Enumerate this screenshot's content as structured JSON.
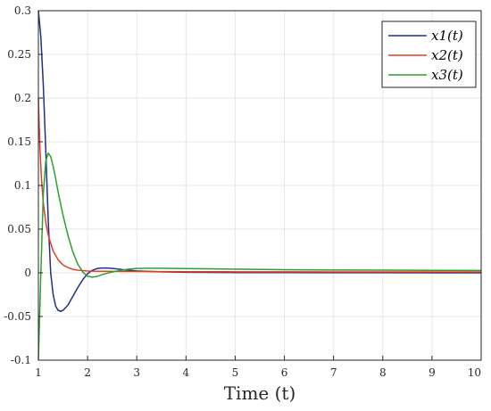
{
  "chart_data": {
    "type": "line",
    "xlabel": "Time (t)",
    "ylabel": "",
    "xlim": [
      1,
      10
    ],
    "ylim": [
      -0.1,
      0.3
    ],
    "grid": true,
    "legend_position": "top-right",
    "x_ticks": [
      "1",
      "2",
      "3",
      "4",
      "5",
      "6",
      "7",
      "8",
      "9",
      "10"
    ],
    "y_ticks": [
      "-0.1",
      "-0.05",
      "0",
      "0.05",
      "0.1",
      "0.15",
      "0.2",
      "0.25",
      "0.3"
    ],
    "series": [
      {
        "name": "x1(t)",
        "color": "#1f2f8c",
        "x": [
          1.0,
          1.05,
          1.1,
          1.15,
          1.2,
          1.25,
          1.3,
          1.35,
          1.4,
          1.45,
          1.5,
          1.6,
          1.7,
          1.8,
          1.9,
          2.0,
          2.1,
          2.2,
          2.3,
          2.4,
          2.6,
          2.8,
          3.0,
          3.5,
          4.0,
          5.0,
          6.0,
          7.0,
          8.0,
          9.0,
          10.0
        ],
        "y": [
          0.3,
          0.27,
          0.215,
          0.14,
          0.06,
          0.0,
          -0.025,
          -0.038,
          -0.043,
          -0.044,
          -0.043,
          -0.037,
          -0.027,
          -0.017,
          -0.008,
          -0.001,
          0.003,
          0.005,
          0.0055,
          0.0055,
          0.0045,
          0.003,
          0.0022,
          0.0012,
          0.0006,
          0.0003,
          0.0002,
          0.0001,
          0.0001,
          0.0,
          0.0
        ]
      },
      {
        "name": "x2(t)",
        "color": "#e0401f",
        "x": [
          1.0,
          1.03,
          1.06,
          1.1,
          1.15,
          1.2,
          1.3,
          1.4,
          1.5,
          1.6,
          1.7,
          1.8,
          2.0,
          2.2,
          2.5,
          3.0,
          3.5,
          4.0,
          5.0,
          6.0,
          7.0,
          8.0,
          9.0,
          10.0
        ],
        "y": [
          0.2,
          0.145,
          0.11,
          0.08,
          0.058,
          0.043,
          0.025,
          0.015,
          0.009,
          0.006,
          0.004,
          0.003,
          0.002,
          0.0018,
          0.0016,
          0.0015,
          0.0014,
          0.0013,
          0.0012,
          0.0011,
          0.001,
          0.001,
          0.001,
          0.001
        ]
      },
      {
        "name": "x3(t)",
        "color": "#2ca02c",
        "x": [
          1.0,
          1.05,
          1.1,
          1.15,
          1.2,
          1.25,
          1.3,
          1.35,
          1.4,
          1.5,
          1.6,
          1.7,
          1.8,
          1.9,
          2.0,
          2.1,
          2.2,
          2.3,
          2.5,
          2.8,
          3.0,
          3.2,
          3.5,
          4.0,
          5.0,
          6.0,
          7.0,
          8.0,
          9.0,
          10.0
        ],
        "y": [
          -0.1,
          0.0,
          0.09,
          0.128,
          0.137,
          0.133,
          0.122,
          0.108,
          0.093,
          0.066,
          0.043,
          0.024,
          0.01,
          0.001,
          -0.004,
          -0.005,
          -0.004,
          -0.002,
          0.001,
          0.004,
          0.005,
          0.0052,
          0.0052,
          0.0048,
          0.0042,
          0.0036,
          0.0032,
          0.003,
          0.0028,
          0.0027
        ]
      }
    ]
  }
}
